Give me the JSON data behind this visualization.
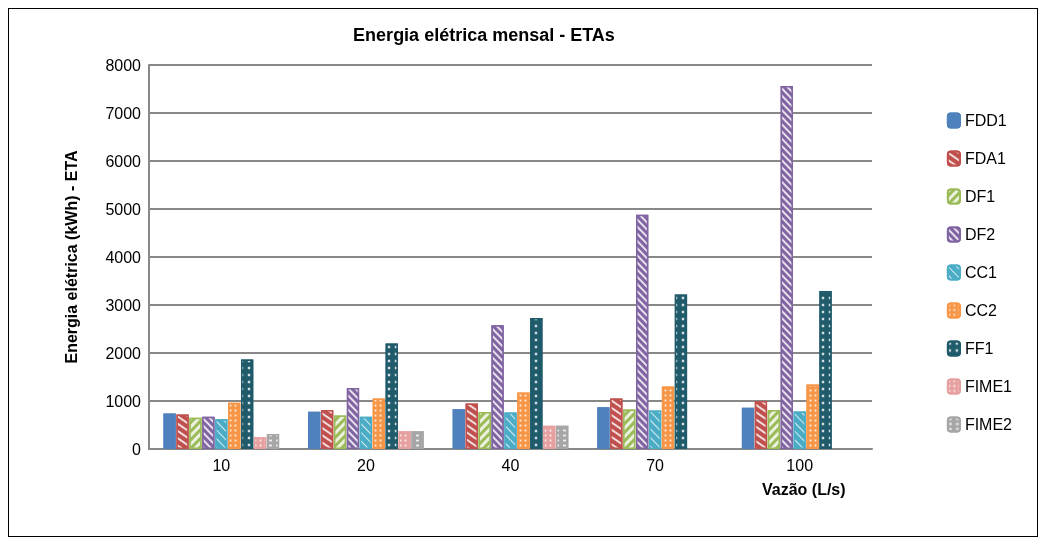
{
  "chart_data": {
    "type": "bar",
    "title": "Energia elétrica mensal - ETAs",
    "xlabel": "Vazão (L/s)",
    "ylabel": "Energia elétrica (kWh) - ETA",
    "categories": [
      "10",
      "20",
      "40",
      "70",
      "100"
    ],
    "ylim": [
      0,
      8000
    ],
    "yticks": [
      0,
      1000,
      2000,
      3000,
      4000,
      5000,
      6000,
      7000,
      8000
    ],
    "grid": "y",
    "legend": "right",
    "series": [
      {
        "name": "FDD1",
        "color": "#4f81bd",
        "values": [
          740,
          775,
          830,
          870,
          860
        ]
      },
      {
        "name": "FDA1",
        "color": "#c0504d",
        "values": [
          720,
          810,
          950,
          1050,
          1000
        ]
      },
      {
        "name": "DF1",
        "color": "#9bbb59",
        "values": [
          650,
          700,
          770,
          825,
          810
        ]
      },
      {
        "name": "DF2",
        "color": "#8064a2",
        "values": [
          670,
          1270,
          2580,
          4880,
          7560
        ]
      },
      {
        "name": "CC1",
        "color": "#4bacc6",
        "values": [
          620,
          670,
          760,
          800,
          780
        ]
      },
      {
        "name": "CC2",
        "color": "#f79646",
        "values": [
          965,
          1050,
          1175,
          1300,
          1345
        ]
      },
      {
        "name": "FF1",
        "color": "#1f5b6b",
        "values": [
          1865,
          2200,
          2730,
          3220,
          3290
        ]
      },
      {
        "name": "FIME1",
        "color": "#e6a0a0",
        "values": [
          245,
          370,
          485,
          null,
          null
        ]
      },
      {
        "name": "FIME2",
        "color": "#a6a6a6",
        "values": [
          310,
          370,
          485,
          null,
          null
        ]
      }
    ]
  }
}
